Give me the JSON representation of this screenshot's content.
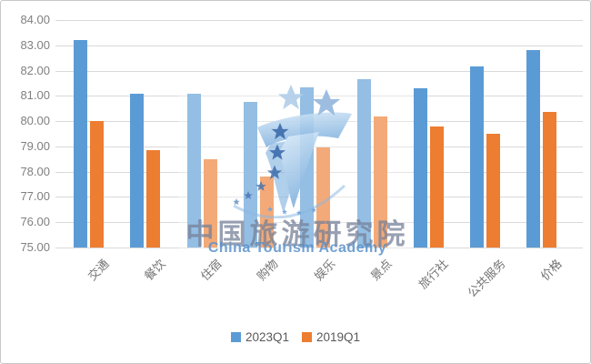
{
  "chart_data": {
    "type": "bar",
    "title": "",
    "xlabel": "",
    "ylabel": "",
    "categories": [
      "交通",
      "餐饮",
      "住宿",
      "购物",
      "娱乐",
      "景点",
      "旅行社",
      "公共服务",
      "价格"
    ],
    "series": [
      {
        "name": "2023Q1",
        "color": "#5B9BD5",
        "values": [
          83.2,
          81.1,
          81.1,
          80.75,
          81.35,
          81.65,
          81.3,
          82.15,
          82.8
        ]
      },
      {
        "name": "2019Q1",
        "color": "#ED7D31",
        "values": [
          80.0,
          78.85,
          78.5,
          77.8,
          78.95,
          80.2,
          79.8,
          79.5,
          80.35
        ]
      }
    ],
    "ylim": [
      75,
      84
    ],
    "ytick_step": 1,
    "yticks": [
      "84.00",
      "83.00",
      "82.00",
      "81.00",
      "80.00",
      "79.00",
      "78.00",
      "77.00",
      "76.00",
      "75.00"
    ],
    "grid": true,
    "legend_position": "bottom"
  },
  "legend": {
    "items": [
      {
        "label": "2023Q1",
        "color": "#5B9BD5"
      },
      {
        "label": "2019Q1",
        "color": "#ED7D31"
      }
    ]
  },
  "watermark": {
    "title_cn": "中国旅游研究院",
    "subtitle_en": "China Tourism Academy"
  },
  "colors": {
    "series_2023q1": "#5B9BD5",
    "series_2019q1": "#ED7D31",
    "gridline": "#D9D9D9",
    "y_axis_text": "#808080",
    "x_axis_text": "#737373",
    "legend_text": "#595959",
    "canvas_border": "#C8C8C8"
  }
}
